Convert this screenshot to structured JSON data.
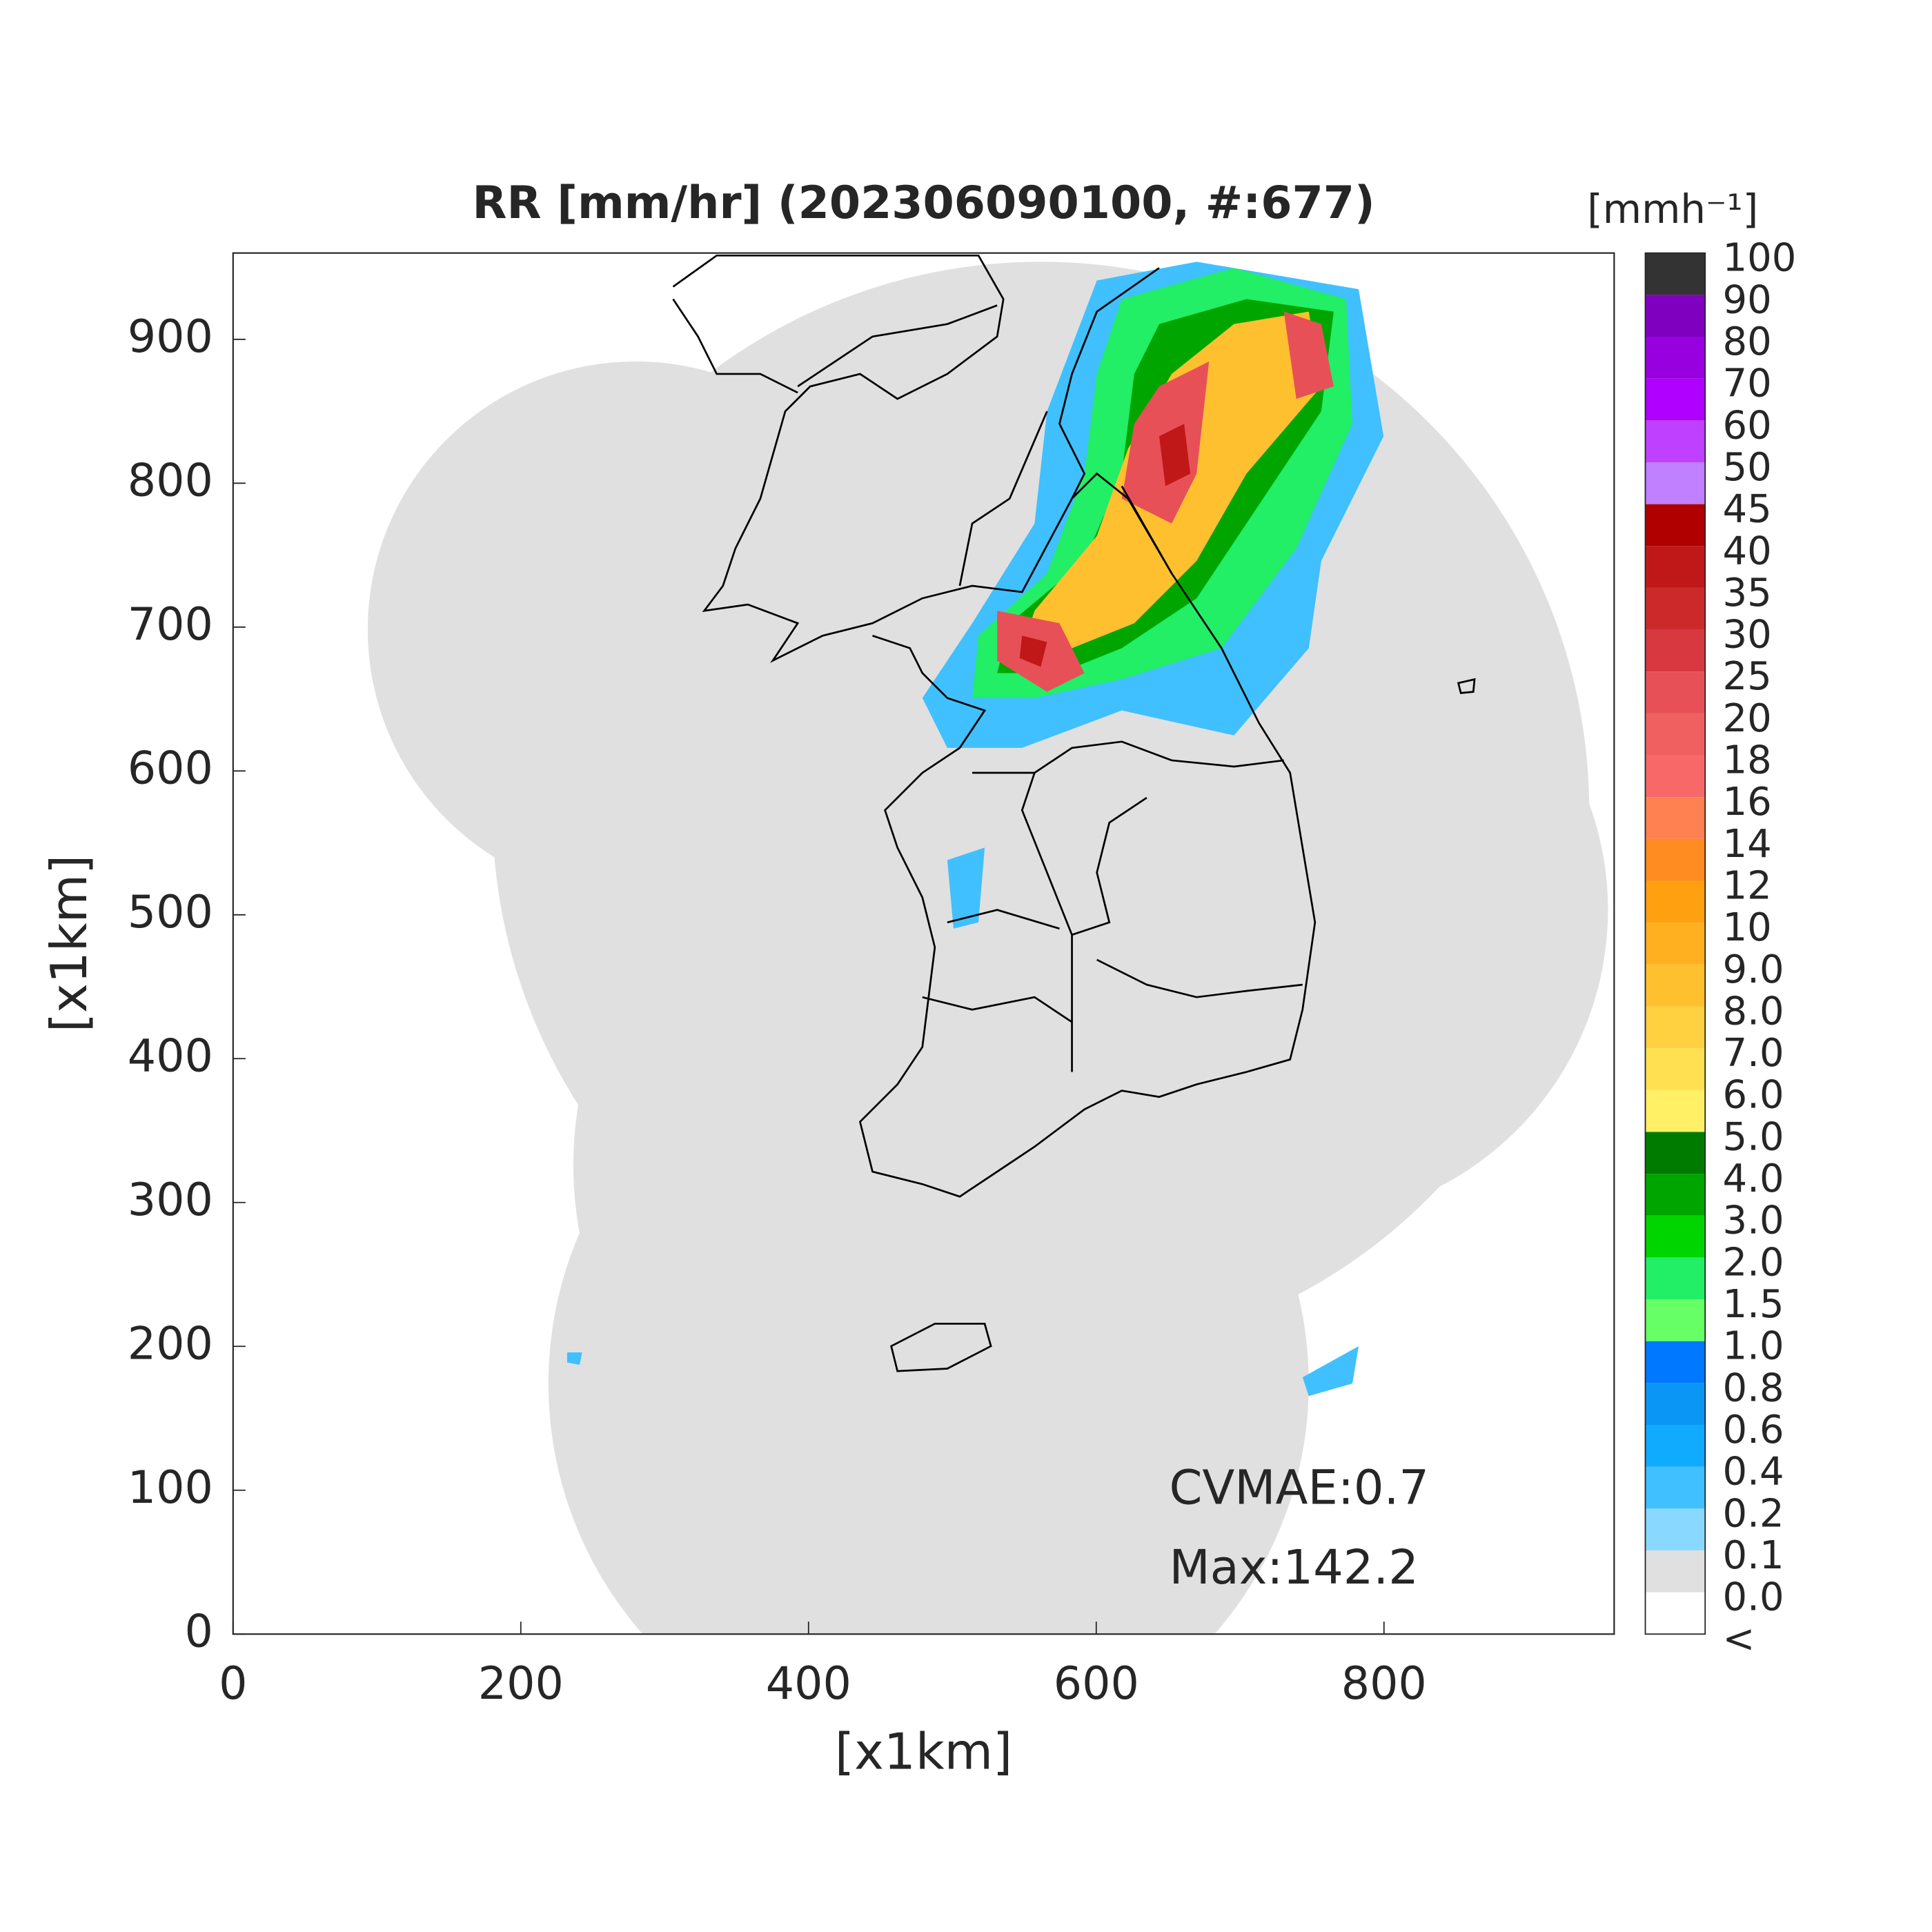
{
  "chart_data": {
    "type": "radar-map",
    "title": "RR [mm/hr] (202306090100, #:677)",
    "x_label": "[x1km]",
    "y_label": "[x1km]",
    "xlim": [
      0,
      960
    ],
    "ylim": [
      0,
      960
    ],
    "xticks": [
      0,
      200,
      400,
      600,
      800
    ],
    "yticks": [
      0,
      100,
      200,
      300,
      400,
      500,
      600,
      700,
      800,
      900
    ],
    "annotations": [
      "CVMAE:0.7",
      "Max:142.2"
    ],
    "colorbar": {
      "title": "[mmh⁻¹]",
      "labels": [
        "<",
        "0.0",
        "0.1",
        "0.2",
        "0.4",
        "0.6",
        "0.8",
        "1.0",
        "1.5",
        "2.0",
        "3.0",
        "4.0",
        "5.0",
        "6.0",
        "7.0",
        "8.0",
        "9.0",
        "10",
        "12",
        "14",
        "16",
        "18",
        "20",
        "25",
        "30",
        "35",
        "40",
        "45",
        "50",
        "60",
        "70",
        "80",
        "90",
        "100"
      ],
      "colors": [
        "#ffffff",
        "#e0e0e0",
        "#88d8ff",
        "#40c0ff",
        "#10aaff",
        "#0a96f5",
        "#0078ff",
        "#66ff66",
        "#22ee66",
        "#00d500",
        "#00a500",
        "#007b00",
        "#fff066",
        "#ffe050",
        "#ffd040",
        "#ffc030",
        "#ffb020",
        "#ffa010",
        "#ff8c20",
        "#ff8050",
        "#f86868",
        "#f06060",
        "#e85058",
        "#d83840",
        "#cc2a2a",
        "#c01818",
        "#b00000",
        "#c080ff",
        "#c040ff",
        "#b000ff",
        "#9800e0",
        "#8000c0",
        "#333333"
      ]
    }
  }
}
